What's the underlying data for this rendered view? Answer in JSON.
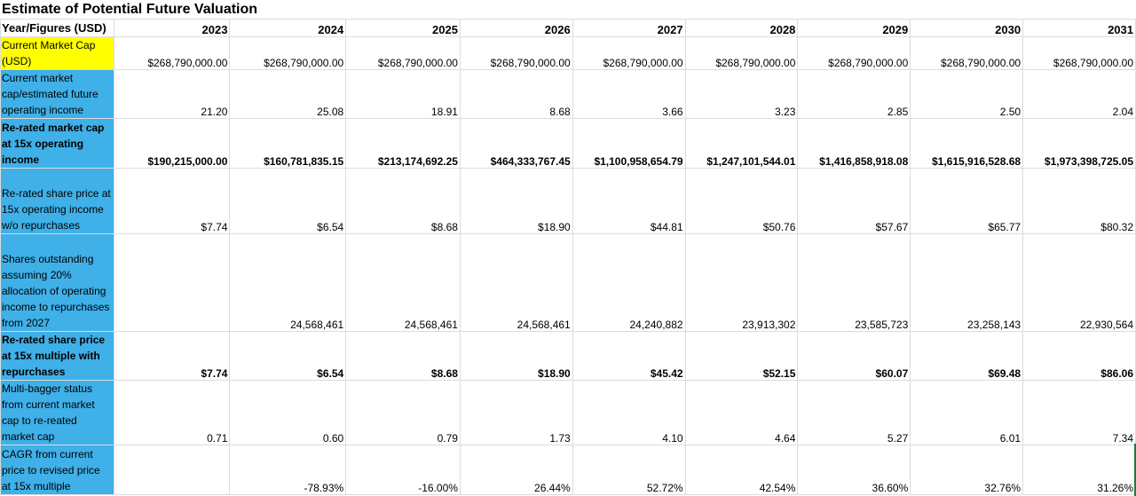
{
  "title": "Estimate of Potential Future Valuation",
  "header": {
    "label": "Year/Figures (USD)",
    "years": [
      "2023",
      "2024",
      "2025",
      "2026",
      "2027",
      "2028",
      "2029",
      "2030",
      "2031"
    ]
  },
  "rows": [
    {
      "label": "Current Market Cap (USD)",
      "values": [
        "$268,790,000.00",
        "$268,790,000.00",
        "$268,790,000.00",
        "$268,790,000.00",
        "$268,790,000.00",
        "$268,790,000.00",
        "$268,790,000.00",
        "$268,790,000.00",
        "$268,790,000.00"
      ]
    },
    {
      "label": "Current market cap/estimated future operating income",
      "values": [
        "21.20",
        "25.08",
        "18.91",
        "8.68",
        "3.66",
        "3.23",
        "2.85",
        "2.50",
        "2.04"
      ]
    },
    {
      "label": "Re-rated market cap at 15x operating income",
      "values": [
        "$190,215,000.00",
        "$160,781,835.15",
        "$213,174,692.25",
        "$464,333,767.45",
        "$1,100,958,654.79",
        "$1,247,101,544.01",
        "$1,416,858,918.08",
        "$1,615,916,528.68",
        "$1,973,398,725.05"
      ]
    },
    {
      "label": "Re-rated share price at 15x operating income w/o repurchases",
      "values": [
        "$7.74",
        "$6.54",
        "$8.68",
        "$18.90",
        "$44.81",
        "$50.76",
        "$57.67",
        "$65.77",
        "$80.32"
      ]
    },
    {
      "label": "Shares outstanding assuming 20% allocation of operating income to repurchases from 2027",
      "values": [
        "",
        "24,568,461",
        "24,568,461",
        "24,568,461",
        "24,240,882",
        "23,913,302",
        "23,585,723",
        "23,258,143",
        "22,930,564"
      ]
    },
    {
      "label": "Re-rated share price at 15x multiple with repurchases",
      "values": [
        "$7.74",
        "$6.54",
        "$8.68",
        "$18.90",
        "$45.42",
        "$52.15",
        "$60.07",
        "$69.48",
        "$86.06"
      ]
    },
    {
      "label": "Multi-bagger status from current market cap to re-reated market cap",
      "values": [
        "0.71",
        "0.60",
        "0.79",
        "1.73",
        "4.10",
        "4.64",
        "5.27",
        "6.01",
        "7.34"
      ]
    },
    {
      "label": "CAGR from current price to revised price at 15x multiple",
      "values": [
        "",
        "-78.93%",
        "-16.00%",
        "26.44%",
        "52.72%",
        "42.54%",
        "36.60%",
        "32.76%",
        "31.26%"
      ]
    }
  ]
}
